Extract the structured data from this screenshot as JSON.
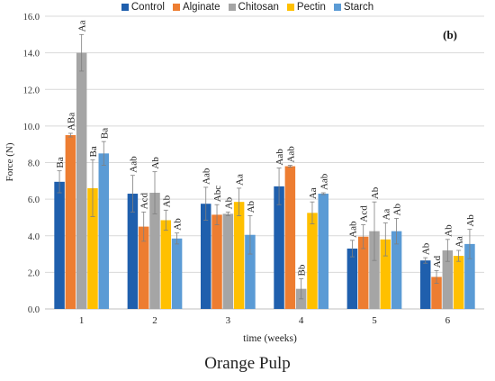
{
  "chart_data": {
    "type": "bar",
    "panel_label": "(b)",
    "caption": "Orange Pulp",
    "xlabel": "time (weeks)",
    "ylabel": "Force (N)",
    "ylim": [
      0,
      16
    ],
    "yticks": [
      "0.0",
      "2.0",
      "4.0",
      "6.0",
      "8.0",
      "10.0",
      "12.0",
      "14.0",
      "16.0"
    ],
    "grid": true,
    "legend_position": "top",
    "categories": [
      "1",
      "2",
      "3",
      "4",
      "5",
      "6"
    ],
    "series": [
      {
        "name": "Control",
        "color": "#1f5fad",
        "values": [
          6.95,
          6.3,
          5.75,
          6.7,
          3.3,
          2.65
        ],
        "errors": [
          0.6,
          1.0,
          0.9,
          1.0,
          0.45,
          0.15
        ],
        "labels": [
          "Ba",
          "Aab",
          "Aab",
          "Aab",
          "Aab",
          "Ab"
        ]
      },
      {
        "name": "Alginate",
        "color": "#ed7d31",
        "values": [
          9.5,
          4.5,
          5.15,
          7.8,
          3.95,
          1.75
        ],
        "errors": [
          0.1,
          0.8,
          0.55,
          0.05,
          0.65,
          0.35
        ],
        "labels": [
          "ABa",
          "Acd",
          "Abc",
          "Aab",
          "Acd",
          "Ad"
        ]
      },
      {
        "name": "Chitosan",
        "color": "#a5a5a5",
        "values": [
          14.0,
          6.35,
          5.2,
          1.1,
          4.25,
          3.2
        ],
        "errors": [
          1.0,
          1.15,
          0.1,
          0.55,
          1.6,
          0.6
        ],
        "labels": [
          "Aa",
          "Ab",
          "Ab",
          "Bb",
          "Ab",
          "Ab"
        ]
      },
      {
        "name": "Pectin",
        "color": "#ffc000",
        "values": [
          6.6,
          4.85,
          5.85,
          5.25,
          3.8,
          2.9
        ],
        "errors": [
          1.55,
          0.55,
          0.75,
          0.6,
          0.9,
          0.3
        ],
        "labels": [
          "Ba",
          "Ab",
          "Aa",
          "Aa",
          "Aa",
          "Aa"
        ]
      },
      {
        "name": "Starch",
        "color": "#5b9bd5",
        "values": [
          8.5,
          3.85,
          4.05,
          6.3,
          4.25,
          3.55
        ],
        "errors": [
          0.65,
          0.3,
          1.05,
          0.05,
          0.7,
          0.8
        ],
        "labels": [
          "Ba",
          "Ab",
          "Ab",
          "Aab",
          "Ab",
          "Ab"
        ]
      }
    ]
  }
}
